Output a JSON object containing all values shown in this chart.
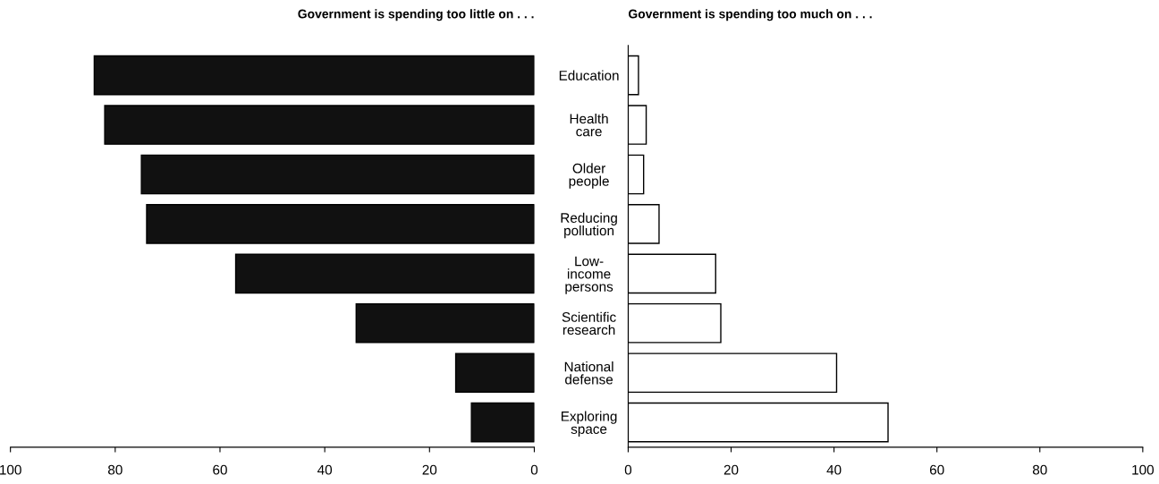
{
  "chart_data": [
    {
      "type": "bar",
      "orientation": "horizontal",
      "title": "Government is spending too little on . . .",
      "categories": [
        "Education",
        "Health\ncare",
        "Older\npeople",
        "Reducing\npollution",
        "Low-\nincome\npersons",
        "Scientific\nresearch",
        "National\ndefense",
        "Exploring\nspace"
      ],
      "values": [
        84,
        82,
        75,
        74,
        57,
        34,
        15,
        12
      ],
      "color": "#111111",
      "xlim": [
        100,
        0
      ],
      "xticks": [
        100,
        80,
        60,
        40,
        20,
        0
      ]
    },
    {
      "type": "bar",
      "orientation": "horizontal",
      "title": "Government is spending too much on . . .",
      "categories": [
        null,
        null,
        null,
        null,
        null,
        null,
        null,
        null
      ],
      "values": [
        2,
        3.5,
        3,
        6,
        17,
        18,
        40.5,
        50.5
      ],
      "color": "#ffffff",
      "xlim": [
        0,
        100
      ],
      "xticks": [
        0,
        20,
        40,
        60,
        80,
        100
      ],
      "tick_labels": "x"
    }
  ]
}
